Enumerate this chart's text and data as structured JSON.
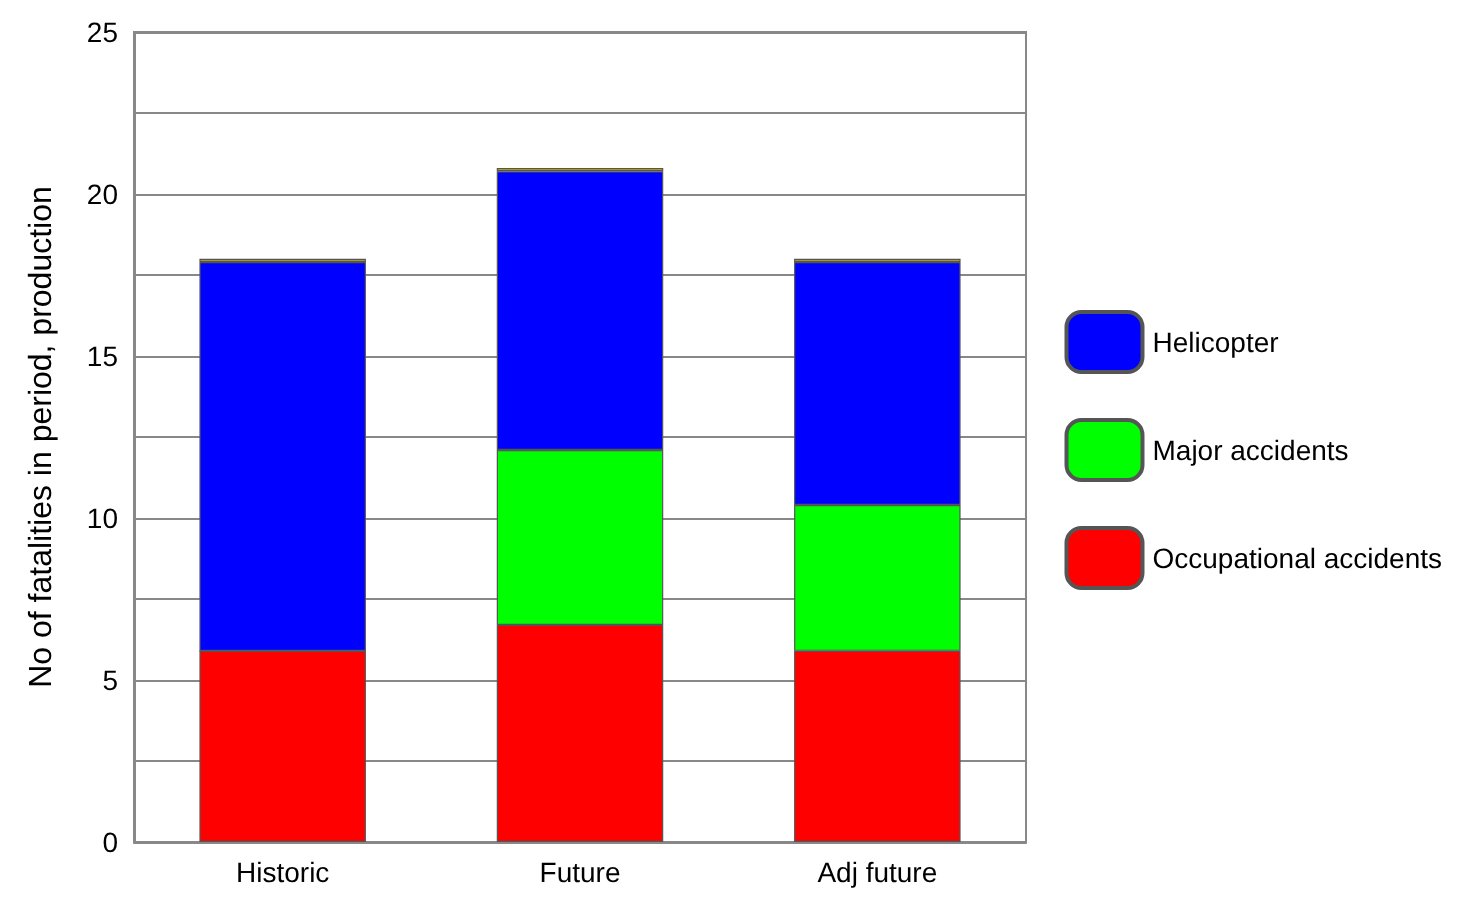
{
  "chart_data": {
    "type": "bar",
    "stacked": true,
    "ylabel": "No of fatalities in period, production",
    "categories": [
      "Historic",
      "Future",
      "Adj future"
    ],
    "series": [
      {
        "name": "Occupational accidents",
        "color": "#ff0000",
        "values": [
          5.9,
          6.7,
          5.9
        ]
      },
      {
        "name": "Major accidents",
        "color": "#00ff00",
        "values": [
          0,
          5.4,
          4.5
        ]
      },
      {
        "name": "Helicopter",
        "color": "#0000ff",
        "values": [
          12.0,
          8.6,
          7.5
        ]
      },
      {
        "color": "#c8b400",
        "values": [
          0.1,
          0.1,
          0.1
        ]
      }
    ],
    "ylim": [
      0,
      25
    ],
    "yticks": [
      0,
      {
        "value": 2.5,
        "label": null
      },
      5,
      {
        "value": 7.5,
        "label": null
      },
      10,
      {
        "value": 12.5,
        "label": null
      },
      15,
      {
        "value": 17.5,
        "label": null
      },
      20,
      {
        "value": 22.5,
        "label": null
      },
      25
    ],
    "grid": "y",
    "legend": "right"
  }
}
